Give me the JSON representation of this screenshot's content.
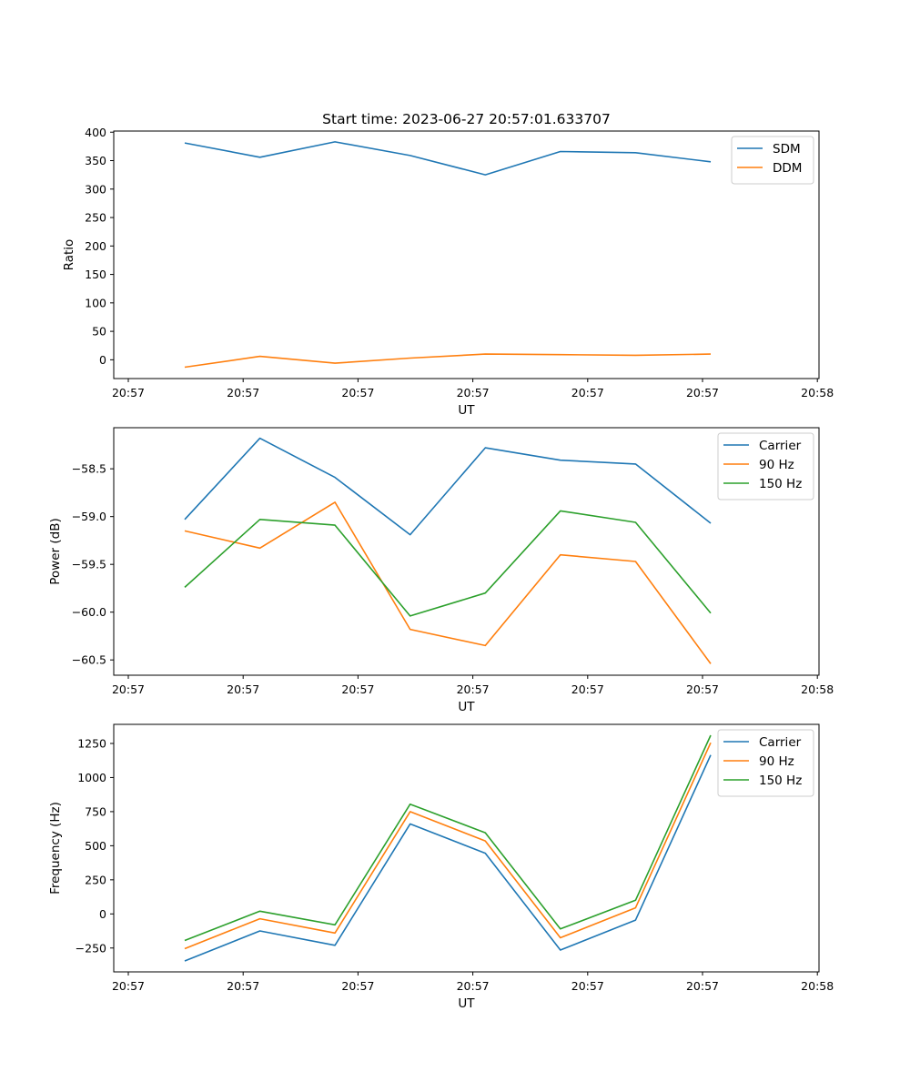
{
  "chart_data": [
    {
      "type": "line",
      "title": "Start time: 2023-06-27 20:57:01.633707",
      "xlabel": "UT",
      "ylabel": "Ratio",
      "x_ticks": [
        "20:57",
        "20:57",
        "20:57",
        "20:57",
        "20:57",
        "20:57",
        "20:58"
      ],
      "y_ticks": [
        "0",
        "50",
        "100",
        "150",
        "200",
        "250",
        "300",
        "350",
        "400"
      ],
      "ylim": [
        -33,
        402
      ],
      "legend_position": "upper right",
      "series": [
        {
          "name": "SDM",
          "color": "#1f77b4",
          "values": [
            381,
            356,
            383,
            359,
            325,
            366,
            364,
            348
          ]
        },
        {
          "name": "DDM",
          "color": "#ff7f0e",
          "values": [
            -13,
            6,
            -6,
            3,
            10,
            9,
            8,
            10
          ]
        }
      ]
    },
    {
      "type": "line",
      "title": "",
      "xlabel": "UT",
      "ylabel": "Power (dB)",
      "x_ticks": [
        "20:57",
        "20:57",
        "20:57",
        "20:57",
        "20:57",
        "20:57",
        "20:58"
      ],
      "y_ticks": [
        "−60.5",
        "−60.0",
        "−59.5",
        "−59.0",
        "−58.5"
      ],
      "ylim": [
        -60.66,
        -58.07
      ],
      "legend_position": "upper right",
      "series": [
        {
          "name": "Carrier",
          "color": "#1f77b4",
          "values": [
            -59.03,
            -58.18,
            -58.59,
            -59.19,
            -58.28,
            -58.41,
            -58.45,
            -59.07
          ]
        },
        {
          "name": "90 Hz",
          "color": "#ff7f0e",
          "values": [
            -59.15,
            -59.33,
            -58.85,
            -60.18,
            -60.35,
            -59.4,
            -59.47,
            -60.54
          ]
        },
        {
          "name": "150 Hz",
          "color": "#2ca02c",
          "values": [
            -59.74,
            -59.03,
            -59.09,
            -60.04,
            -59.8,
            -58.94,
            -59.06,
            -60.01
          ]
        }
      ]
    },
    {
      "type": "line",
      "title": "",
      "xlabel": "UT",
      "ylabel": "Frequency (Hz)",
      "x_ticks": [
        "20:57",
        "20:57",
        "20:57",
        "20:57",
        "20:57",
        "20:57",
        "20:58"
      ],
      "y_ticks": [
        "−250",
        "0",
        "250",
        "500",
        "750",
        "1000",
        "1250"
      ],
      "ylim": [
        -425,
        1390
      ],
      "legend_position": "upper right",
      "series": [
        {
          "name": "Carrier",
          "color": "#1f77b4",
          "values": [
            -345,
            -125,
            -230,
            660,
            445,
            -265,
            -45,
            1165
          ]
        },
        {
          "name": "90 Hz",
          "color": "#ff7f0e",
          "values": [
            -255,
            -35,
            -140,
            750,
            535,
            -175,
            45,
            1255
          ]
        },
        {
          "name": "150 Hz",
          "color": "#2ca02c",
          "values": [
            -195,
            20,
            -80,
            805,
            595,
            -110,
            100,
            1310
          ]
        }
      ]
    }
  ]
}
